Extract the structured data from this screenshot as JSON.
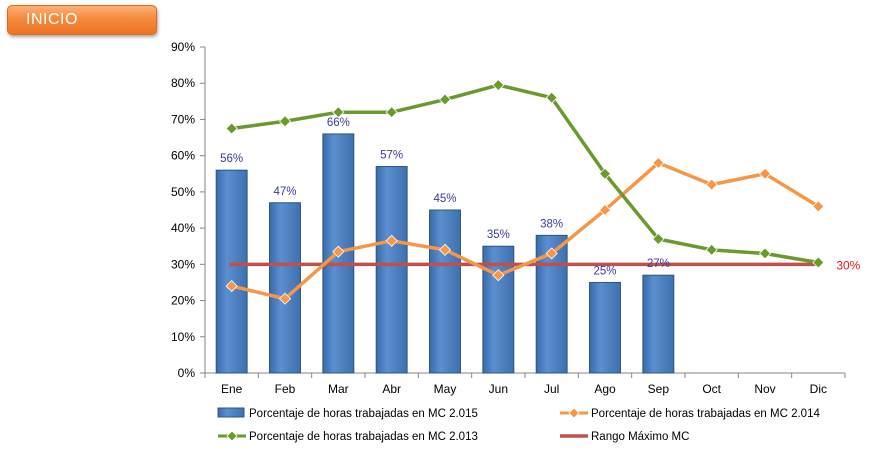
{
  "inicio_button": {
    "label": "INICIO"
  },
  "chart_data": {
    "type": "bar",
    "categories": [
      "Ene",
      "Feb",
      "Mar",
      "Abr",
      "May",
      "Jun",
      "Jul",
      "Ago",
      "Sep",
      "Oct",
      "Nov",
      "Dic"
    ],
    "ylim": [
      0,
      0.9
    ],
    "yticks": [
      0,
      0.1,
      0.2,
      0.3,
      0.4,
      0.5,
      0.6,
      0.7,
      0.8,
      0.9
    ],
    "ytick_labels": [
      "0%",
      "10%",
      "20%",
      "30%",
      "40%",
      "50%",
      "60%",
      "70%",
      "80%",
      "90%"
    ],
    "grid": false,
    "legend_position": "bottom",
    "series": [
      {
        "name": "Porcentaje de horas trabajadas en MC 2.015",
        "type": "bar",
        "color": "#4f81bd",
        "values": [
          0.56,
          0.47,
          0.66,
          0.57,
          0.45,
          0.35,
          0.38,
          0.25,
          0.27,
          null,
          null,
          null
        ],
        "labels": [
          "56%",
          "47%",
          "66%",
          "57%",
          "45%",
          "35%",
          "38%",
          "25%",
          "27%",
          "",
          "",
          ""
        ]
      },
      {
        "name": "Porcentaje de horas trabajadas en MC 2.014",
        "type": "line",
        "color": "#f79646",
        "values": [
          0.24,
          0.205,
          0.335,
          0.365,
          0.34,
          0.27,
          0.33,
          0.45,
          0.58,
          0.52,
          0.55,
          0.46
        ]
      },
      {
        "name": "Porcentaje de horas trabajadas en MC 2.013",
        "type": "line",
        "color": "#6a9a2e",
        "values": [
          0.675,
          0.695,
          0.72,
          0.72,
          0.755,
          0.795,
          0.76,
          0.55,
          0.37,
          0.34,
          0.33,
          0.305
        ]
      },
      {
        "name": "Rango Máximo MC",
        "type": "line",
        "color": "#c0504d",
        "values": [
          0.3,
          0.3,
          0.3,
          0.3,
          0.3,
          0.3,
          0.3,
          0.3,
          0.3,
          0.3,
          0.3,
          0.3
        ],
        "end_label": "30%"
      }
    ]
  }
}
